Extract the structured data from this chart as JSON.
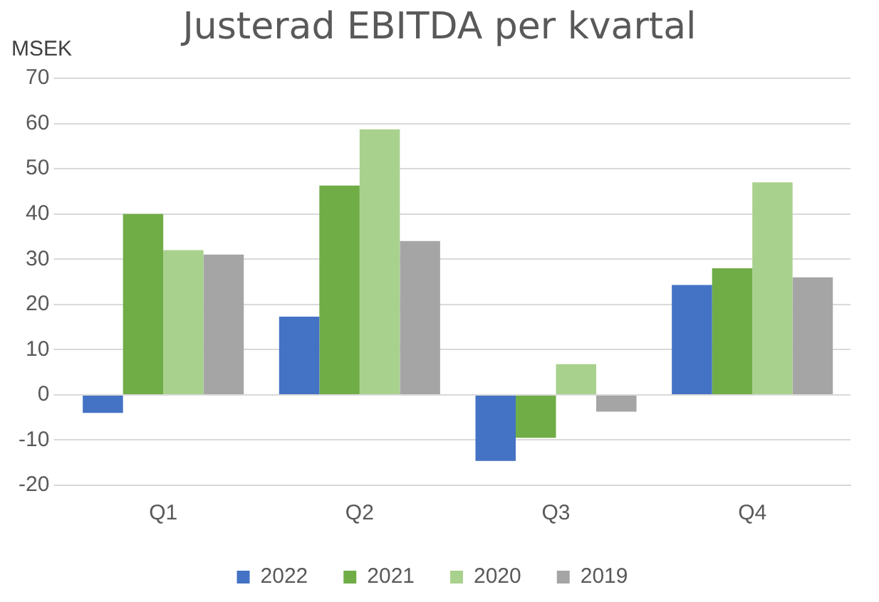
{
  "chart_data": {
    "type": "bar",
    "title": "Justerad EBITDA per kvartal",
    "ylabel": "MSEK",
    "categories": [
      "Q1",
      "Q2",
      "Q3",
      "Q4"
    ],
    "series": [
      {
        "name": "2022",
        "color": "#4472c4",
        "values": [
          -4,
          17.3,
          -14.6,
          24.3
        ]
      },
      {
        "name": "2021",
        "color": "#70ad47",
        "values": [
          40,
          46.3,
          -9.5,
          28
        ]
      },
      {
        "name": "2020",
        "color": "#a9d18e",
        "values": [
          32,
          58.7,
          6.8,
          47
        ]
      },
      {
        "name": "2019",
        "color": "#a5a5a5",
        "values": [
          31,
          34,
          -3.7,
          26
        ]
      }
    ],
    "ylim": [
      -20,
      70
    ],
    "yticks": [
      -20,
      -10,
      0,
      10,
      20,
      30,
      40,
      50,
      60,
      70
    ],
    "grid": "y",
    "legend": "bottom"
  }
}
